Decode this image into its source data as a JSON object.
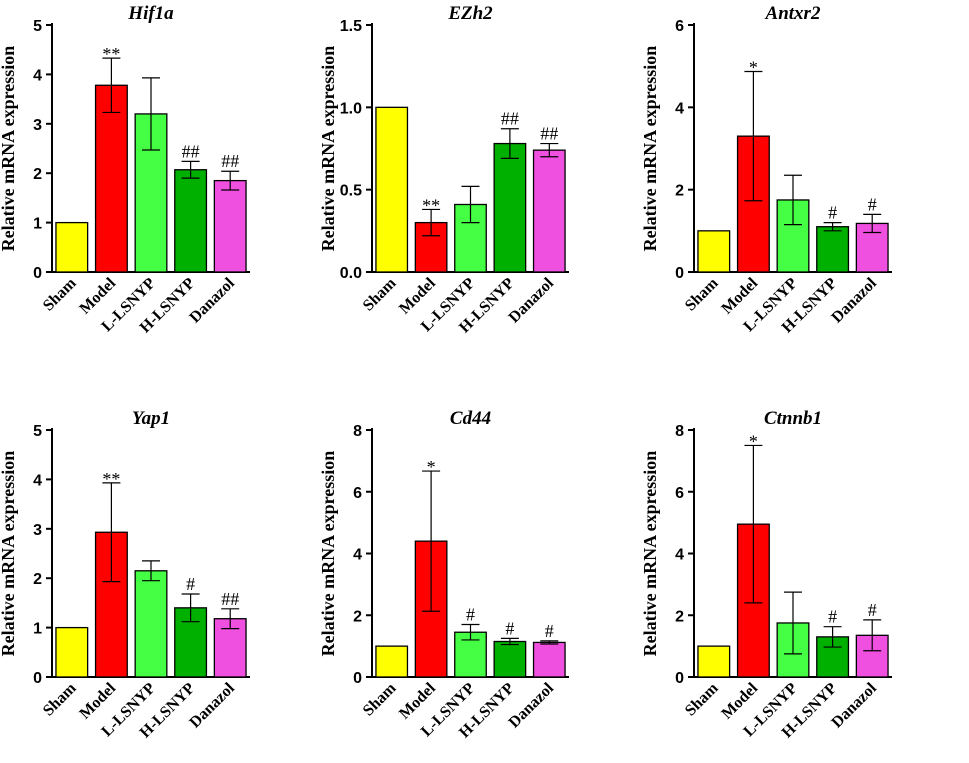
{
  "chart_data": [
    {
      "type": "bar",
      "title": "Hif1a",
      "ylabel": "Relative mRNA expression",
      "categories": [
        "Sham",
        "Model",
        "L-LSNYP",
        "H-LSNYP",
        "Danazol"
      ],
      "values": [
        1.0,
        3.78,
        3.2,
        2.07,
        1.85
      ],
      "errors": [
        0,
        0.55,
        0.73,
        0.17,
        0.19
      ],
      "significance": [
        "",
        "**",
        "",
        "##",
        "##"
      ],
      "ylim": [
        0,
        5
      ],
      "yticks": [
        0,
        1,
        2,
        3,
        4,
        5
      ],
      "ytick_labels": [
        "0",
        "1",
        "2",
        "3",
        "4",
        "5"
      ]
    },
    {
      "type": "bar",
      "title": "EZh2",
      "ylabel": "Relative mRNA expression",
      "categories": [
        "Sham",
        "Model",
        "L-LSNYP",
        "H-LSNYP",
        "Danazol"
      ],
      "values": [
        1.0,
        0.3,
        0.41,
        0.78,
        0.74
      ],
      "errors": [
        0,
        0.08,
        0.11,
        0.09,
        0.04
      ],
      "significance": [
        "",
        "**",
        "",
        "##",
        "##"
      ],
      "ylim": [
        0,
        1.5
      ],
      "yticks": [
        0,
        0.5,
        1.0,
        1.5
      ],
      "ytick_labels": [
        "0.0",
        "0.5",
        "1.0",
        "1.5"
      ]
    },
    {
      "type": "bar",
      "title": "Antxr2",
      "ylabel": "Relative mRNA expression",
      "categories": [
        "Sham",
        "Model",
        "L-LSNYP",
        "H-LSNYP",
        "Danazol"
      ],
      "values": [
        1.0,
        3.3,
        1.75,
        1.1,
        1.18
      ],
      "errors": [
        0,
        1.57,
        0.6,
        0.1,
        0.22
      ],
      "significance": [
        "",
        "*",
        "",
        "#",
        "#"
      ],
      "ylim": [
        0,
        6
      ],
      "yticks": [
        0,
        2,
        4,
        6
      ],
      "ytick_labels": [
        "0",
        "2",
        "4",
        "6"
      ]
    },
    {
      "type": "bar",
      "title": "Yap1",
      "ylabel": "Relative mRNA expression",
      "categories": [
        "Sham",
        "Model",
        "L-LSNYP",
        "H-LSNYP",
        "Danazol"
      ],
      "values": [
        1.0,
        2.93,
        2.15,
        1.4,
        1.18
      ],
      "errors": [
        0,
        1.0,
        0.2,
        0.28,
        0.2
      ],
      "significance": [
        "",
        "**",
        "",
        "#",
        "##"
      ],
      "ylim": [
        0,
        5
      ],
      "yticks": [
        0,
        1,
        2,
        3,
        4,
        5
      ],
      "ytick_labels": [
        "0",
        "1",
        "2",
        "3",
        "4",
        "5"
      ]
    },
    {
      "type": "bar",
      "title": "Cd44",
      "ylabel": "Relative mRNA expression",
      "categories": [
        "Sham",
        "Model",
        "L-LSNYP",
        "H-LSNYP",
        "Danazol"
      ],
      "values": [
        1.0,
        4.4,
        1.45,
        1.15,
        1.12
      ],
      "errors": [
        0,
        2.27,
        0.25,
        0.1,
        0.05
      ],
      "significance": [
        "",
        "*",
        "#",
        "#",
        "#"
      ],
      "ylim": [
        0,
        8
      ],
      "yticks": [
        0,
        2,
        4,
        6,
        8
      ],
      "ytick_labels": [
        "0",
        "2",
        "4",
        "6",
        "8"
      ]
    },
    {
      "type": "bar",
      "title": "Ctnnb1",
      "ylabel": "Relative mRNA expression",
      "categories": [
        "Sham",
        "Model",
        "L-LSNYP",
        "H-LSNYP",
        "Danazol"
      ],
      "values": [
        1.0,
        4.95,
        1.75,
        1.3,
        1.35
      ],
      "errors": [
        0,
        2.55,
        1.0,
        0.33,
        0.5
      ],
      "significance": [
        "",
        "*",
        "",
        "#",
        "#"
      ],
      "ylim": [
        0,
        8
      ],
      "yticks": [
        0,
        2,
        4,
        6,
        8
      ],
      "ytick_labels": [
        "0",
        "2",
        "4",
        "6",
        "8"
      ]
    }
  ],
  "colors": [
    "#FFFF00",
    "#FF0000",
    "#44FF44",
    "#00B000",
    "#F050E0"
  ]
}
